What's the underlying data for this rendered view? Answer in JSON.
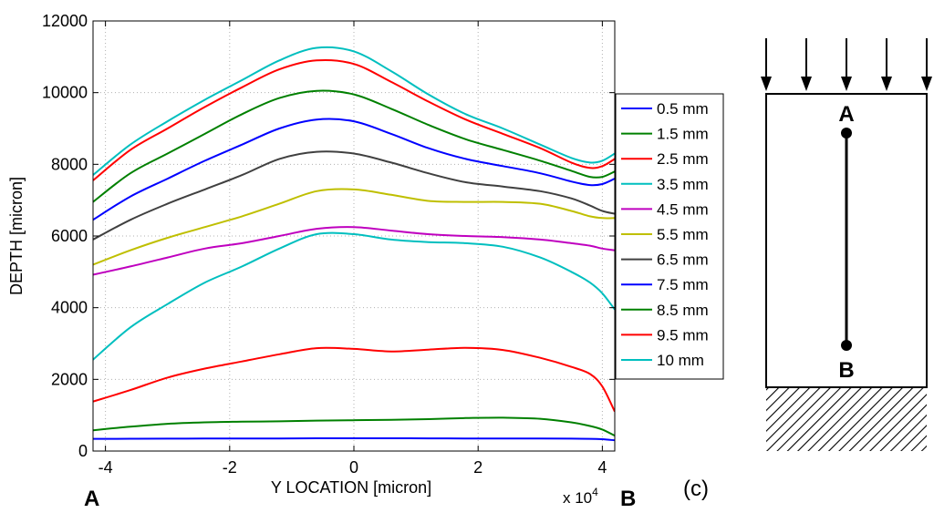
{
  "chart_data": {
    "type": "line",
    "title": "",
    "xlabel": "Y LOCATION [micron]",
    "ylabel": "DEPTH [micron]",
    "x_multiplier": "x 10",
    "x_multiplier_exp": "4",
    "xlim": [
      -4.2,
      4.2
    ],
    "ylim": [
      0,
      12000
    ],
    "xticks": [
      -4,
      -2,
      0,
      2,
      4
    ],
    "yticks": [
      0,
      2000,
      4000,
      6000,
      8000,
      10000,
      12000
    ],
    "xtick_labels": [
      "-4",
      "-2",
      "0",
      "2",
      "4"
    ],
    "ytick_labels": [
      "0",
      "2000",
      "4000",
      "6000",
      "8000",
      "10000",
      "12000"
    ],
    "grid": true,
    "legend_position": "right",
    "x": [
      -4.2,
      -3.6,
      -3.0,
      -2.4,
      -1.8,
      -1.2,
      -0.6,
      0.0,
      0.6,
      1.2,
      1.8,
      2.4,
      3.0,
      3.5,
      3.8,
      4.0,
      4.2
    ],
    "series": [
      {
        "name": "0.5 mm",
        "color": "#0000ff",
        "values": [
          340,
          342,
          345,
          348,
          350,
          352,
          355,
          356,
          355,
          354,
          352,
          350,
          348,
          345,
          340,
          330,
          300
        ]
      },
      {
        "name": "1.5 mm",
        "color": "#008000",
        "values": [
          580,
          680,
          760,
          800,
          820,
          830,
          850,
          860,
          870,
          890,
          920,
          930,
          900,
          800,
          700,
          600,
          430
        ]
      },
      {
        "name": "2.5 mm",
        "color": "#ff0000",
        "values": [
          1380,
          1700,
          2050,
          2300,
          2500,
          2700,
          2870,
          2850,
          2780,
          2830,
          2880,
          2820,
          2600,
          2350,
          2150,
          1800,
          1100
        ]
      },
      {
        "name": "3.5 mm",
        "color": "#00bfbf",
        "values": [
          2550,
          3450,
          4100,
          4700,
          5150,
          5650,
          6050,
          6050,
          5900,
          5830,
          5800,
          5700,
          5400,
          5000,
          4700,
          4400,
          3950
        ]
      },
      {
        "name": "4.5 mm",
        "color": "#bf00bf",
        "values": [
          4920,
          5150,
          5400,
          5650,
          5800,
          6000,
          6200,
          6250,
          6150,
          6050,
          6000,
          5970,
          5900,
          5800,
          5730,
          5650,
          5600
        ]
      },
      {
        "name": "5.5 mm",
        "color": "#bfbf00",
        "values": [
          5200,
          5600,
          5950,
          6250,
          6550,
          6900,
          7250,
          7300,
          7150,
          6980,
          6950,
          6950,
          6900,
          6700,
          6550,
          6500,
          6500
        ]
      },
      {
        "name": "6.5 mm",
        "color": "#404040",
        "values": [
          5900,
          6450,
          6900,
          7300,
          7700,
          8150,
          8350,
          8300,
          8050,
          7750,
          7500,
          7380,
          7250,
          7050,
          6850,
          6700,
          6620
        ]
      },
      {
        "name": "7.5 mm",
        "color": "#0000ff",
        "values": [
          6450,
          7100,
          7600,
          8100,
          8550,
          9000,
          9250,
          9200,
          8850,
          8450,
          8150,
          7950,
          7750,
          7520,
          7420,
          7450,
          7600
        ]
      },
      {
        "name": "8.5 mm",
        "color": "#008000",
        "values": [
          6950,
          7750,
          8300,
          8850,
          9400,
          9850,
          10050,
          9950,
          9550,
          9100,
          8700,
          8400,
          8100,
          7820,
          7650,
          7650,
          7800
        ]
      },
      {
        "name": "9.5 mm",
        "color": "#ff0000",
        "values": [
          7550,
          8400,
          9000,
          9600,
          10150,
          10650,
          10900,
          10800,
          10300,
          9750,
          9250,
          8850,
          8450,
          8050,
          7900,
          7950,
          8150
        ]
      },
      {
        "name": "10 mm",
        "color": "#00bfbf",
        "values": [
          7700,
          8550,
          9200,
          9800,
          10350,
          10900,
          11250,
          11150,
          10600,
          9950,
          9400,
          9000,
          8550,
          8180,
          8050,
          8100,
          8300
        ]
      }
    ]
  },
  "annotations": {
    "point_a_left": "A",
    "point_b_right": "B",
    "panel_label": "(c)"
  },
  "schematic": {
    "label_a": "A",
    "label_b": "B",
    "arrow_count": 5
  }
}
